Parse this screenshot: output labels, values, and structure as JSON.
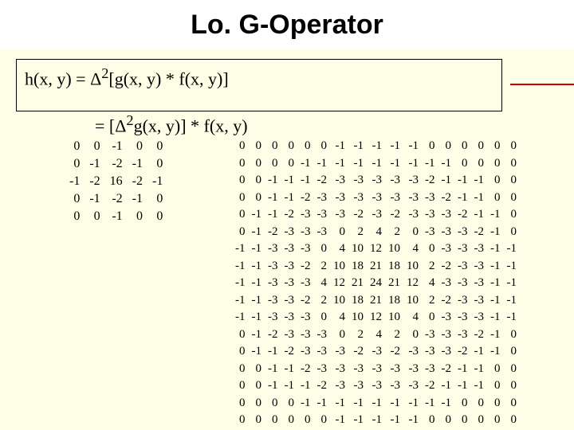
{
  "title": "Lo. G-Operator",
  "formula": {
    "line1_pre": "h(x, y) = ",
    "line1_delta": "Δ",
    "line1_sup": "2",
    "line1_post": "[g(x, y) * f(x, y)]",
    "line2_pre": "            = [",
    "line2_delta": "Δ",
    "line2_sup": "2",
    "line2_post": "g(x, y)] * f(x, y)"
  },
  "matrix_small": [
    [
      0,
      0,
      -1,
      0,
      0
    ],
    [
      0,
      -1,
      -2,
      -1,
      0
    ],
    [
      -1,
      -2,
      16,
      -2,
      -1
    ],
    [
      0,
      -1,
      -2,
      -1,
      0
    ],
    [
      0,
      0,
      -1,
      0,
      0
    ]
  ],
  "matrix_big": [
    [
      0,
      0,
      0,
      0,
      0,
      0,
      -1,
      -1,
      -1,
      -1,
      -1,
      0,
      0,
      0,
      0,
      0,
      0
    ],
    [
      0,
      0,
      0,
      0,
      -1,
      -1,
      -1,
      -1,
      -1,
      -1,
      -1,
      -1,
      -1,
      0,
      0,
      0,
      0
    ],
    [
      0,
      0,
      -1,
      -1,
      -1,
      -2,
      -3,
      -3,
      -3,
      -3,
      -3,
      -2,
      -1,
      -1,
      -1,
      0,
      0
    ],
    [
      0,
      0,
      -1,
      -1,
      -2,
      -3,
      -3,
      -3,
      -3,
      -3,
      -3,
      -3,
      -2,
      -1,
      -1,
      0,
      0
    ],
    [
      0,
      -1,
      -1,
      -2,
      -3,
      -3,
      -3,
      -2,
      -3,
      -2,
      -3,
      -3,
      -3,
      -2,
      -1,
      -1,
      0
    ],
    [
      0,
      -1,
      -2,
      -3,
      -3,
      -3,
      0,
      2,
      4,
      2,
      0,
      -3,
      -3,
      -3,
      -2,
      -1,
      0
    ],
    [
      -1,
      -1,
      -3,
      -3,
      -3,
      0,
      4,
      10,
      12,
      10,
      4,
      0,
      -3,
      -3,
      -3,
      -1,
      -1
    ],
    [
      -1,
      -1,
      -3,
      -3,
      -2,
      2,
      10,
      18,
      21,
      18,
      10,
      2,
      -2,
      -3,
      -3,
      -1,
      -1
    ],
    [
      -1,
      -1,
      -3,
      -3,
      -3,
      4,
      12,
      21,
      24,
      21,
      12,
      4,
      -3,
      -3,
      -3,
      -1,
      -1
    ],
    [
      -1,
      -1,
      -3,
      -3,
      -2,
      2,
      10,
      18,
      21,
      18,
      10,
      2,
      -2,
      -3,
      -3,
      -1,
      -1
    ],
    [
      -1,
      -1,
      -3,
      -3,
      -3,
      0,
      4,
      10,
      12,
      10,
      4,
      0,
      -3,
      -3,
      -3,
      -1,
      -1
    ],
    [
      0,
      -1,
      -2,
      -3,
      -3,
      -3,
      0,
      2,
      4,
      2,
      0,
      -3,
      -3,
      -3,
      -2,
      -1,
      0
    ],
    [
      0,
      -1,
      -1,
      -2,
      -3,
      -3,
      -3,
      -2,
      -3,
      -2,
      -3,
      -3,
      -3,
      -2,
      -1,
      -1,
      0
    ],
    [
      0,
      0,
      -1,
      -1,
      -2,
      -3,
      -3,
      -3,
      -3,
      -3,
      -3,
      -3,
      -2,
      -1,
      -1,
      0,
      0
    ],
    [
      0,
      0,
      -1,
      -1,
      -1,
      -2,
      -3,
      -3,
      -3,
      -3,
      -3,
      -2,
      -1,
      -1,
      -1,
      0,
      0
    ],
    [
      0,
      0,
      0,
      0,
      -1,
      -1,
      -1,
      -1,
      -1,
      -1,
      -1,
      -1,
      -1,
      0,
      0,
      0,
      0
    ],
    [
      0,
      0,
      0,
      0,
      0,
      0,
      -1,
      -1,
      -1,
      -1,
      -1,
      0,
      0,
      0,
      0,
      0,
      0
    ]
  ]
}
